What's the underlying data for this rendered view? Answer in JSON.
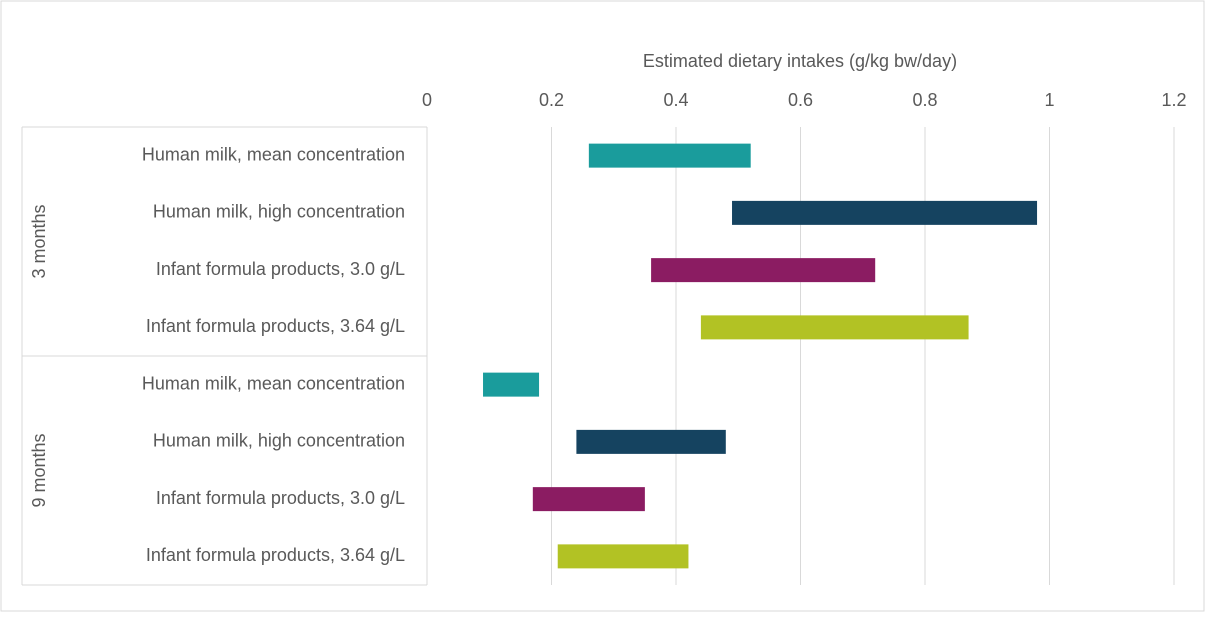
{
  "chart_data": {
    "type": "range",
    "x_label": "Estimated dietary intakes (g/kg bw/day)",
    "xlim": [
      0,
      1.2
    ],
    "xticks": [
      0,
      0.2,
      0.4,
      0.6,
      0.8,
      1,
      1.2
    ],
    "grid": true,
    "colors": [
      "#1a9c9c",
      "#154360",
      "#8b1c62",
      "#b2c224"
    ],
    "groups": [
      {
        "name": "3 months",
        "categories": [
          "Human milk, mean concentration",
          "Human milk, high concentration",
          "Infant formula products, 3.0 g/L",
          "Infant formula products, 3.64 g/L"
        ],
        "start": [
          0.26,
          0.49,
          0.36,
          0.44
        ],
        "end": [
          0.52,
          0.98,
          0.72,
          0.87
        ]
      },
      {
        "name": "9 months",
        "categories": [
          "Human milk, mean concentration",
          "Human milk, high concentration",
          "Infant formula products, 3.0 g/L",
          "Infant formula products, 3.64 g/L"
        ],
        "start": [
          0.09,
          0.24,
          0.17,
          0.21
        ],
        "end": [
          0.18,
          0.48,
          0.35,
          0.42
        ]
      }
    ]
  }
}
